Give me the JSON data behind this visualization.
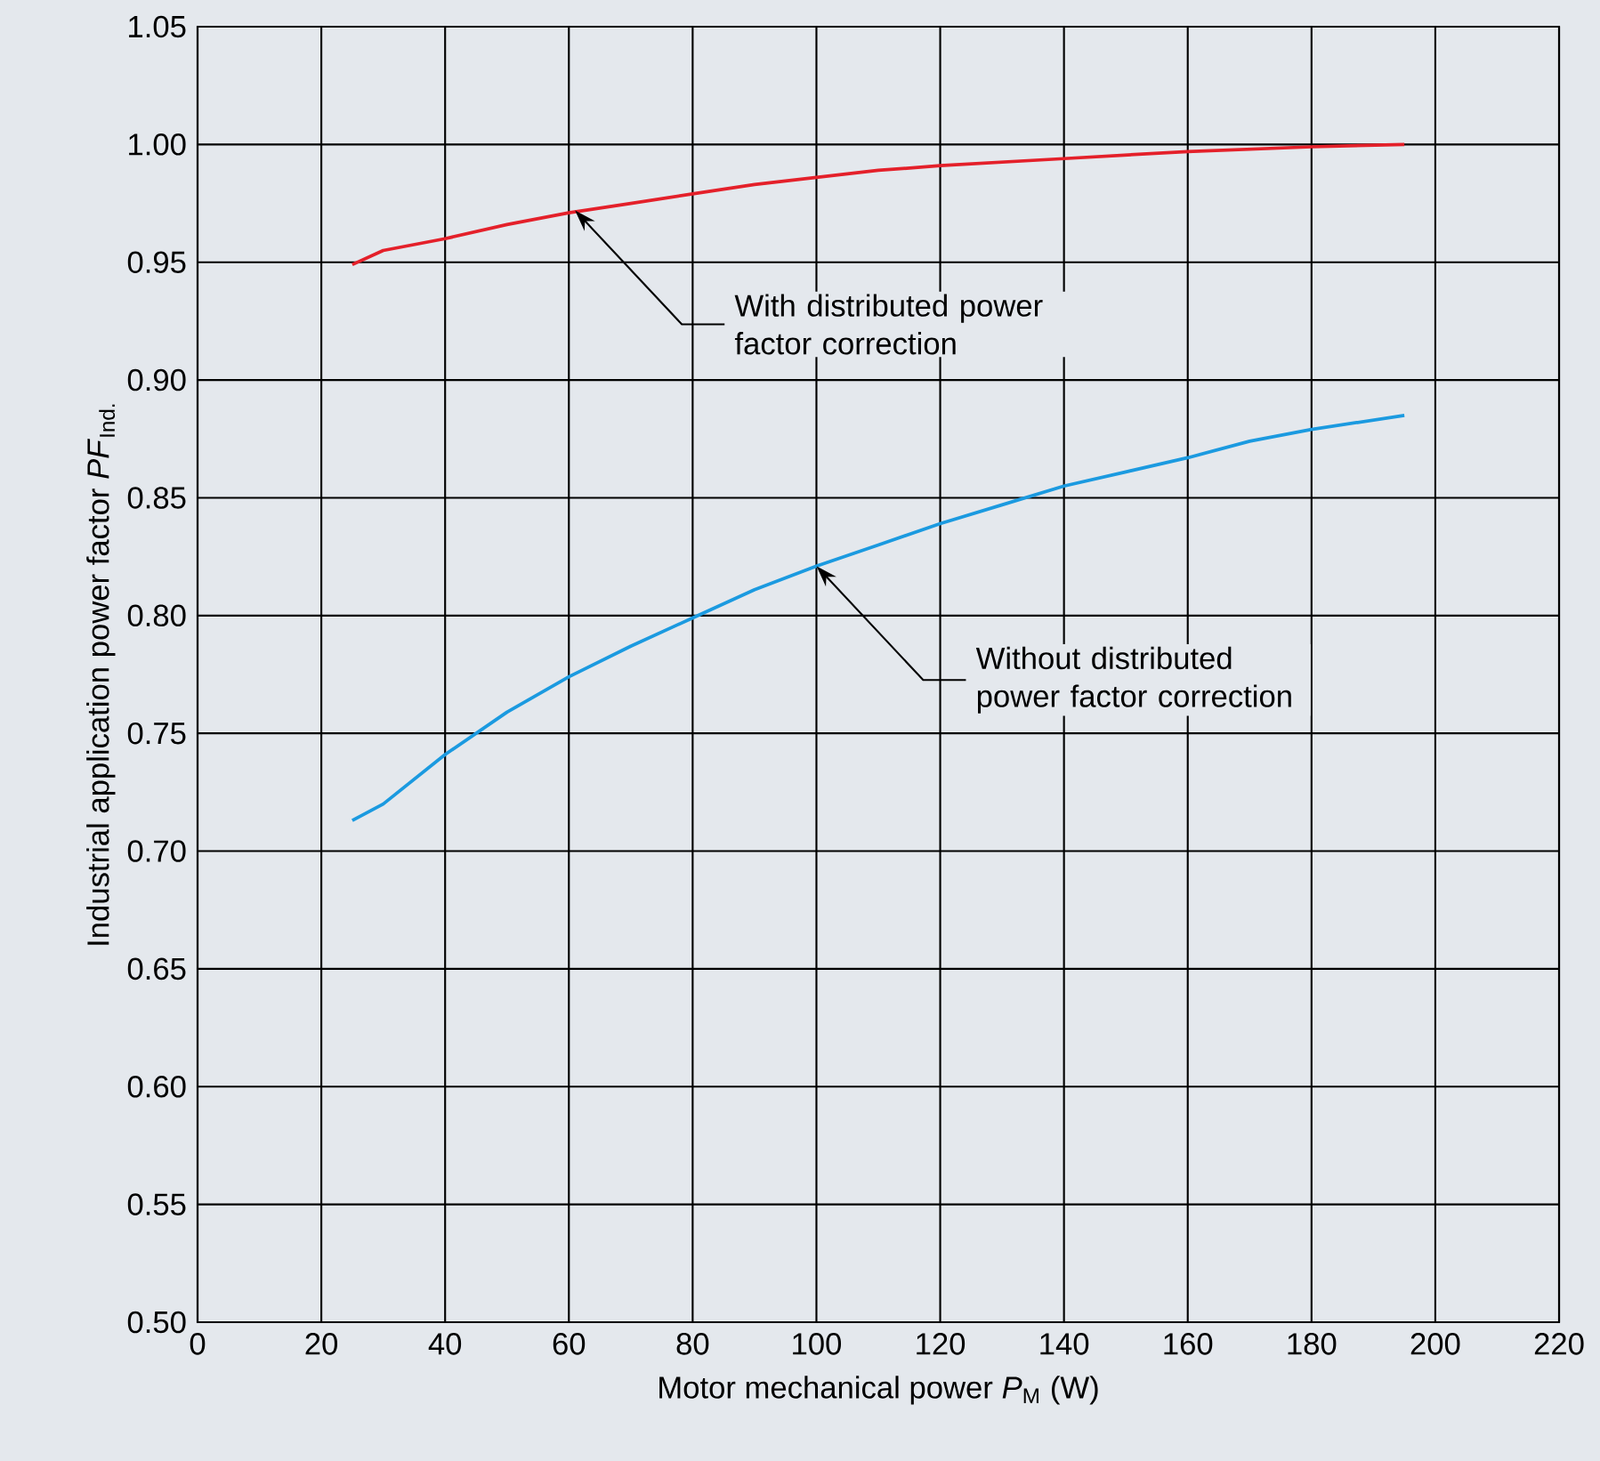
{
  "chart_data": {
    "type": "line",
    "xlabel": "Motor mechanical power *P*$_{M}$ (W)",
    "ylabel": "Industrial application power factor *PF*$_{Ind.}$",
    "xlim": [
      0,
      220
    ],
    "xticks": [
      0,
      20,
      40,
      60,
      80,
      100,
      120,
      140,
      160,
      180,
      200,
      220
    ],
    "ylim": [
      0.5,
      1.05
    ],
    "yticks": [
      {
        "value": 0.5,
        "label": "0.50"
      },
      0.55,
      {
        "value": 0.6,
        "label": "0.60"
      },
      0.65,
      {
        "value": 0.7,
        "label": "0.70"
      },
      0.75,
      {
        "value": 0.8,
        "label": "0.80"
      },
      0.85,
      {
        "value": 0.9,
        "label": "0.90"
      },
      0.95,
      {
        "value": 1.0,
        "label": "1.00"
      },
      1.05
    ],
    "grid": true,
    "marker": "none",
    "line_style": "solid",
    "series": [
      {
        "color": "#e4202a",
        "x": [
          25,
          30,
          40,
          50,
          60,
          70,
          80,
          90,
          100,
          110,
          120,
          140,
          160,
          180,
          195
        ],
        "values": [
          0.949,
          0.955,
          0.96,
          0.966,
          0.971,
          0.975,
          0.979,
          0.983,
          0.986,
          0.989,
          0.991,
          0.994,
          0.997,
          0.999,
          1.0
        ]
      },
      {
        "color": "#1b9ae0",
        "x": [
          25,
          30,
          40,
          50,
          60,
          70,
          80,
          90,
          100,
          110,
          120,
          130,
          140,
          150,
          160,
          170,
          180,
          195
        ],
        "values": [
          0.713,
          0.72,
          0.741,
          0.759,
          0.774,
          0.787,
          0.799,
          0.811,
          0.821,
          0.83,
          0.839,
          0.847,
          0.855,
          0.861,
          0.867,
          0.874,
          0.879,
          0.885
        ]
      }
    ],
    "annotations": [
      {
        "text": "With distributed power factor correction",
        "x": 61,
        "y": 0.972
      },
      {
        "text": "Without distributed power factor correction",
        "x": 100,
        "y": 0.821
      }
    ]
  }
}
